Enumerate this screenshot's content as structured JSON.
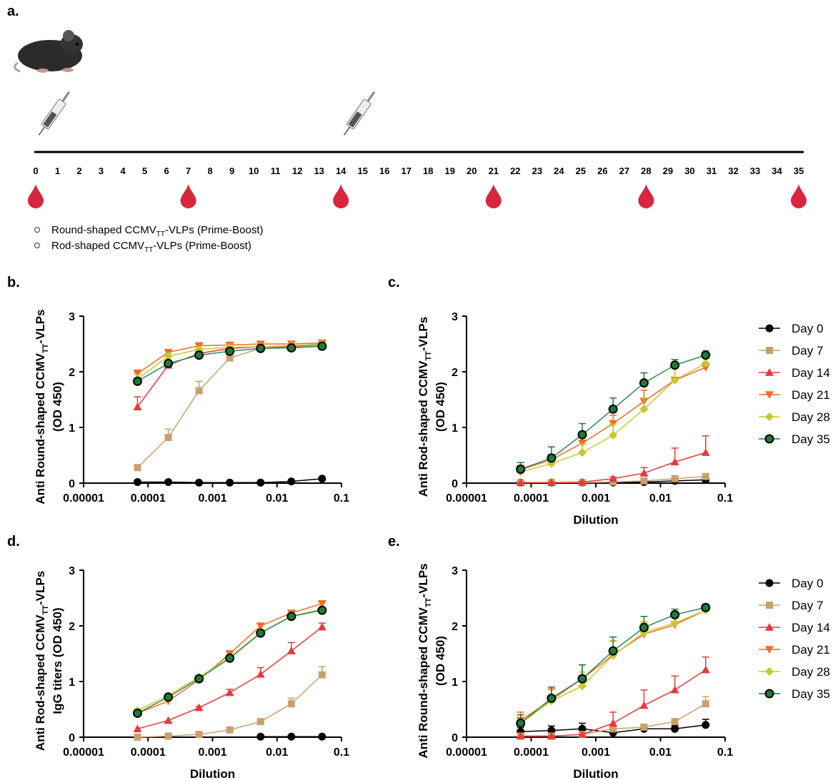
{
  "panel_a": {
    "letter": "a.",
    "days": [
      0,
      1,
      2,
      3,
      4,
      5,
      6,
      7,
      8,
      9,
      10,
      11,
      12,
      13,
      14,
      15,
      16,
      17,
      18,
      19,
      20,
      21,
      22,
      23,
      24,
      25,
      26,
      27,
      28,
      29,
      30,
      31,
      32,
      33,
      34,
      35
    ],
    "blood_draw_days": [
      0,
      7,
      14,
      21,
      28,
      35
    ],
    "injection_days": [
      0,
      14
    ],
    "legend": [
      [
        "Round-shaped CCMV",
        "TT",
        "-VLPs (Prime-Boost)"
      ],
      [
        "Rod-shaped CCMV",
        "TT",
        "-VLPs (Prime-Boost)"
      ]
    ]
  },
  "chart_data": [
    {
      "type": "line",
      "letter": "b.",
      "ylabel": [
        "Anti Round-shaped CCMV",
        "TT",
        "-VLPs"
      ],
      "ylabel_line2": "(OD 450)",
      "xscale": "log",
      "xlim": [
        1e-05,
        0.1
      ],
      "xticks": [
        1e-05,
        0.0001,
        0.001,
        0.01,
        0.1
      ],
      "ylim": [
        0,
        3
      ],
      "yticks": [
        0,
        1,
        2,
        3
      ],
      "legend": false,
      "x": [
        6.86e-05,
        0.000206,
        0.000617,
        0.00185,
        0.00556,
        0.0167,
        0.05
      ],
      "series": [
        {
          "name": "Day 0",
          "color": "#000000",
          "marker": "circle",
          "values": [
            0.02,
            0.02,
            0.01,
            0.01,
            0.01,
            0.03,
            0.08
          ],
          "errors": [
            0,
            0,
            0,
            0,
            0,
            0,
            0.01
          ]
        },
        {
          "name": "Day 7",
          "color": "#c9a06b",
          "marker": "square",
          "values": [
            0.28,
            0.82,
            1.66,
            2.25,
            2.42,
            2.45,
            2.48
          ],
          "errors": [
            0.03,
            0.15,
            0.17,
            0.05,
            0.03,
            0.03,
            0.03
          ]
        },
        {
          "name": "Day 14",
          "color": "#e8393b",
          "marker": "triangle-up",
          "values": [
            1.37,
            2.12,
            2.33,
            2.42,
            2.45,
            2.45,
            2.5
          ],
          "errors": [
            0.18,
            0.05,
            0.04,
            0.03,
            0.03,
            0.03,
            0.03
          ]
        },
        {
          "name": "Day 21",
          "color": "#f26b21",
          "marker": "triangle-down",
          "values": [
            1.97,
            2.35,
            2.47,
            2.48,
            2.5,
            2.5,
            2.52
          ],
          "errors": [
            0.06,
            0.04,
            0.03,
            0.03,
            0.03,
            0.03,
            0.03
          ]
        },
        {
          "name": "Day 28",
          "color": "#c8c82a",
          "marker": "diamond",
          "values": [
            1.87,
            2.28,
            2.4,
            2.44,
            2.45,
            2.47,
            2.5
          ],
          "errors": [
            0.08,
            0.05,
            0.03,
            0.03,
            0.03,
            0.03,
            0.03
          ]
        },
        {
          "name": "Day 35",
          "color": "#1f7a3a",
          "marker": "circle-outline",
          "values": [
            1.83,
            2.15,
            2.3,
            2.37,
            2.42,
            2.43,
            2.46
          ],
          "errors": [
            0.05,
            0.05,
            0.03,
            0.03,
            0.03,
            0.03,
            0.03
          ]
        }
      ]
    },
    {
      "type": "line",
      "letter": "c.",
      "ylabel": [
        "Anti Rod-shaped CCMV",
        "TT",
        "-VLPs"
      ],
      "ylabel_line2": "(OD 450)",
      "xlabel": "Dilution",
      "xscale": "log",
      "xlim": [
        1e-05,
        0.1
      ],
      "xticks": [
        1e-05,
        0.0001,
        0.001,
        0.01,
        0.1
      ],
      "ylim": [
        0,
        3
      ],
      "yticks": [
        0,
        1,
        2,
        3
      ],
      "legend": true,
      "x": [
        6.86e-05,
        0.000206,
        0.000617,
        0.00185,
        0.00556,
        0.0167,
        0.05
      ],
      "series": [
        {
          "name": "Day 0",
          "color": "#000000",
          "marker": "circle",
          "values": [
            0.01,
            0.01,
            0.01,
            0.01,
            0.02,
            0.04,
            0.06
          ],
          "errors": [
            0,
            0,
            0,
            0,
            0.01,
            0.01,
            0.02
          ]
        },
        {
          "name": "Day 7",
          "color": "#c9a06b",
          "marker": "square",
          "values": [
            0.01,
            0.01,
            0.01,
            0.02,
            0.04,
            0.08,
            0.12
          ],
          "errors": [
            0,
            0,
            0,
            0.01,
            0.02,
            0.04,
            0.05
          ]
        },
        {
          "name": "Day 14",
          "color": "#e8393b",
          "marker": "triangle-up",
          "values": [
            0.01,
            0.01,
            0.02,
            0.08,
            0.18,
            0.38,
            0.55
          ],
          "errors": [
            0,
            0,
            0.01,
            0.03,
            0.1,
            0.25,
            0.3
          ]
        },
        {
          "name": "Day 21",
          "color": "#f26b21",
          "marker": "triangle-down",
          "values": [
            0.24,
            0.42,
            0.72,
            1.07,
            1.47,
            1.85,
            2.08
          ],
          "errors": [
            0.08,
            0.1,
            0.12,
            0.15,
            0.2,
            0.3,
            0.3
          ]
        },
        {
          "name": "Day 28",
          "color": "#c8c82a",
          "marker": "diamond",
          "values": [
            0.2,
            0.35,
            0.55,
            0.86,
            1.33,
            1.85,
            2.15
          ],
          "errors": [
            0.1,
            0.1,
            0.15,
            0.2,
            0.2,
            0.3,
            0.2
          ]
        },
        {
          "name": "Day 35",
          "color": "#1f7a3a",
          "marker": "circle-outline",
          "values": [
            0.25,
            0.45,
            0.87,
            1.33,
            1.8,
            2.12,
            2.3
          ],
          "errors": [
            0.12,
            0.2,
            0.2,
            0.2,
            0.18,
            0.1,
            0.05
          ]
        }
      ]
    },
    {
      "type": "line",
      "letter": "d.",
      "ylabel": [
        "Anti Rod-shaped CCMV",
        "TT",
        "-VLPs"
      ],
      "ylabel_line2": "IgG titers (OD 450)",
      "xlabel": "Dilution",
      "xscale": "log",
      "xlim": [
        1e-05,
        0.1
      ],
      "xticks": [
        1e-05,
        0.0001,
        0.001,
        0.01,
        0.1
      ],
      "ylim": [
        0,
        3
      ],
      "yticks": [
        0,
        1,
        2,
        3
      ],
      "legend": false,
      "x": [
        6.86e-05,
        0.000206,
        0.000617,
        0.00185,
        0.00556,
        0.0167,
        0.05
      ],
      "series": [
        {
          "name": "Day 0",
          "color": "#000000",
          "marker": "circle",
          "values": [
            null,
            null,
            null,
            null,
            0.01,
            0.01,
            0.01
          ],
          "errors": [
            null,
            null,
            null,
            null,
            0,
            0,
            0
          ]
        },
        {
          "name": "Day 7",
          "color": "#c9a06b",
          "marker": "square",
          "values": [
            0.0,
            0.02,
            0.05,
            0.13,
            0.28,
            0.6,
            1.12
          ],
          "errors": [
            0,
            0,
            0,
            0.02,
            0.03,
            0.1,
            0.15
          ]
        },
        {
          "name": "Day 14",
          "color": "#e8393b",
          "marker": "triangle-up",
          "values": [
            0.15,
            0.3,
            0.53,
            0.8,
            1.13,
            1.55,
            1.98
          ],
          "errors": [
            0,
            0,
            0.02,
            0.06,
            0.12,
            0.15,
            0.07
          ]
        },
        {
          "name": "Day 21",
          "color": "#f26b21",
          "marker": "triangle-down",
          "values": [
            0.43,
            0.65,
            1.03,
            1.5,
            2.0,
            2.23,
            2.4
          ],
          "errors": [
            0.03,
            0.03,
            0.03,
            0.05,
            0.03,
            0.03,
            0.03
          ]
        },
        {
          "name": "Day 28",
          "color": "#c8c82a",
          "marker": "diamond",
          "values": [
            0.48,
            0.75,
            1.08,
            1.43,
            1.88,
            2.17,
            2.3
          ],
          "errors": [
            0.03,
            0.03,
            0.03,
            0.05,
            0.05,
            0.03,
            0.03
          ]
        },
        {
          "name": "Day 35",
          "color": "#1f7a3a",
          "marker": "circle-outline",
          "values": [
            0.43,
            0.72,
            1.05,
            1.42,
            1.87,
            2.17,
            2.28
          ],
          "errors": [
            0.03,
            0.03,
            0.05,
            0.05,
            0.05,
            0.03,
            0.03
          ]
        }
      ]
    },
    {
      "type": "line",
      "letter": "e.",
      "ylabel": [
        "Anti Round-shaped CCMV",
        "TT",
        "-VLPs"
      ],
      "ylabel_line2": "(OD 450)",
      "xlabel": "Dilution",
      "xscale": "log",
      "xlim": [
        1e-05,
        0.1
      ],
      "xticks": [
        1e-05,
        0.0001,
        0.001,
        0.01,
        0.1
      ],
      "ylim": [
        0,
        3
      ],
      "yticks": [
        0,
        1,
        2,
        3
      ],
      "legend": true,
      "x": [
        6.86e-05,
        0.000206,
        0.000617,
        0.00185,
        0.00556,
        0.0167,
        0.05
      ],
      "series": [
        {
          "name": "Day 0",
          "color": "#000000",
          "marker": "circle",
          "values": [
            0.1,
            0.12,
            0.15,
            0.08,
            0.15,
            0.15,
            0.22
          ],
          "errors": [
            0.08,
            0.08,
            0.1,
            0.08,
            0.08,
            0.06,
            0.1
          ]
        },
        {
          "name": "Day 7",
          "color": "#c9a06b",
          "marker": "square",
          "values": [
            0.02,
            0.02,
            0.05,
            0.15,
            0.18,
            0.28,
            0.6
          ],
          "errors": [
            0,
            0,
            0,
            0,
            0.05,
            0.05,
            0.13
          ]
        },
        {
          "name": "Day 14",
          "color": "#e8393b",
          "marker": "triangle-up",
          "values": [
            0.02,
            0.02,
            0.05,
            0.25,
            0.57,
            0.85,
            1.21
          ],
          "errors": [
            0,
            0,
            0,
            0.2,
            0.28,
            0.25,
            0.23
          ]
        },
        {
          "name": "Day 21",
          "color": "#f26b21",
          "marker": "triangle-down",
          "values": [
            0.3,
            0.67,
            1.05,
            1.48,
            1.85,
            2.02,
            2.28
          ],
          "errors": [
            0.15,
            0.2,
            0.25,
            0.25,
            0.2,
            0.2,
            0.1
          ]
        },
        {
          "name": "Day 28",
          "color": "#c8c82a",
          "marker": "diamond",
          "values": [
            0.25,
            0.65,
            0.92,
            1.47,
            1.88,
            2.05,
            2.28
          ],
          "errors": [
            0.15,
            0.2,
            0.25,
            0.25,
            0.2,
            0.2,
            0.1
          ]
        },
        {
          "name": "Day 35",
          "color": "#1f7a3a",
          "marker": "circle-outline",
          "values": [
            0.25,
            0.7,
            1.05,
            1.55,
            1.97,
            2.2,
            2.33
          ],
          "errors": [
            0.15,
            0.2,
            0.25,
            0.25,
            0.2,
            0.1,
            0.05
          ]
        }
      ]
    }
  ]
}
